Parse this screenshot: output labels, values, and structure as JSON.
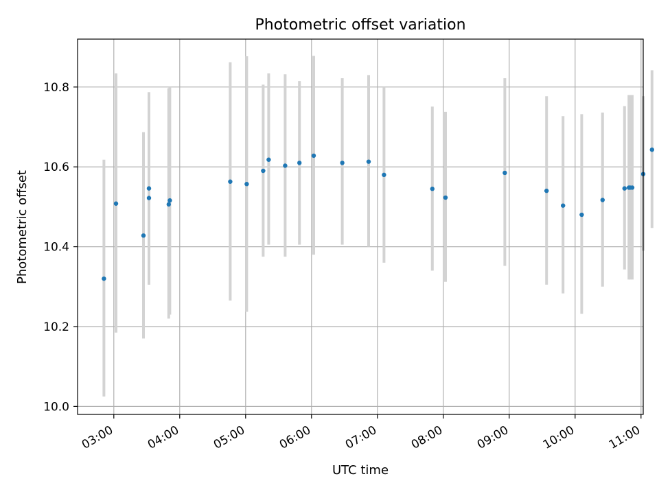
{
  "chart_data": {
    "type": "scatter",
    "title": "Photometric offset variation",
    "xlabel": "UTC time",
    "ylabel": "Photometric offset",
    "xlim": [
      "02:27",
      "11:02"
    ],
    "ylim": [
      9.98,
      10.92
    ],
    "grid": true,
    "colors": {
      "points": "#1f77b4",
      "error_bars": "#d3d3d3",
      "grid": "#b0b0b0"
    },
    "x_ticks": [
      "03:00",
      "04:00",
      "05:00",
      "06:00",
      "07:00",
      "08:00",
      "09:00",
      "10:00",
      "11:00"
    ],
    "y_ticks": [
      "10.0",
      "10.2",
      "10.4",
      "10.6",
      "10.8"
    ],
    "series": [
      {
        "x": [
          "02:51",
          "03:02",
          "03:27",
          "03:32",
          "03:32",
          "03:50",
          "03:51",
          "04:46",
          "05:01",
          "05:16",
          "05:21",
          "05:36",
          "05:49",
          "06:02",
          "06:28",
          "06:52",
          "07:06",
          "07:50",
          "08:02",
          "08:56",
          "09:34",
          "09:49",
          "10:06",
          "10:25",
          "10:45",
          "10:49",
          "10:50",
          "10:52",
          "11:02",
          "11:10"
        ],
        "y": [
          10.32,
          10.508,
          10.428,
          10.522,
          10.546,
          10.506,
          10.516,
          10.563,
          10.557,
          10.59,
          10.618,
          10.603,
          10.61,
          10.628,
          10.61,
          10.613,
          10.58,
          10.545,
          10.523,
          10.585,
          10.54,
          10.503,
          10.48,
          10.517,
          10.546,
          10.548,
          10.548,
          10.548,
          10.582,
          10.643
        ],
        "err_low": [
          10.025,
          10.185,
          10.17,
          10.305,
          10.305,
          10.22,
          10.23,
          10.265,
          10.237,
          10.375,
          10.405,
          10.375,
          10.405,
          10.38,
          10.405,
          10.4,
          10.36,
          10.34,
          10.312,
          10.352,
          10.305,
          10.283,
          10.232,
          10.3,
          10.343,
          10.318,
          10.318,
          10.318,
          10.39,
          10.447
        ],
        "err_high": [
          10.618,
          10.834,
          10.687,
          10.787,
          10.787,
          10.797,
          10.8,
          10.862,
          10.877,
          10.806,
          10.834,
          10.832,
          10.815,
          10.878,
          10.822,
          10.83,
          10.8,
          10.751,
          10.738,
          10.822,
          10.777,
          10.727,
          10.732,
          10.736,
          10.752,
          10.78,
          10.78,
          10.78,
          10.777,
          10.842
        ]
      }
    ]
  }
}
